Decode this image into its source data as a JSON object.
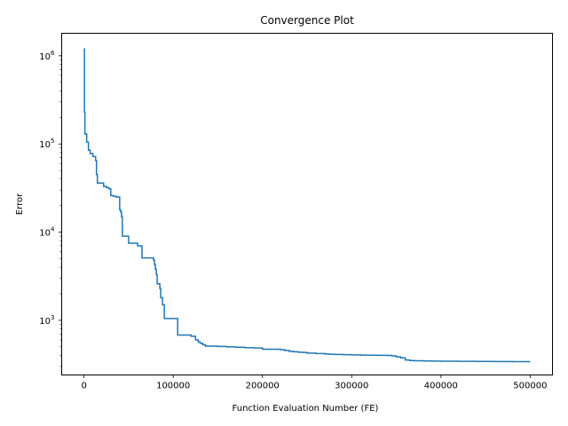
{
  "chart_data": {
    "type": "line",
    "title": "Convergence Plot",
    "xlabel": "Function Evaluation Number (FE)",
    "ylabel": "Error",
    "xlim": [
      -25000,
      525000
    ],
    "ylim": [
      240,
      1800000
    ],
    "yscale": "log",
    "grid": false,
    "x_ticks": [
      0,
      100000,
      200000,
      300000,
      400000,
      500000
    ],
    "x_tick_labels": [
      "0",
      "100000",
      "200000",
      "300000",
      "400000",
      "500000"
    ],
    "y_ticks": [
      1000,
      10000,
      100000,
      1000000
    ],
    "y_tick_labels": [
      {
        "base": "10",
        "exp": "3"
      },
      {
        "base": "10",
        "exp": "4"
      },
      {
        "base": "10",
        "exp": "5"
      },
      {
        "base": "10",
        "exp": "6"
      }
    ],
    "series": [
      {
        "color": "#1f77b4",
        "step": true,
        "x": [
          0,
          500,
          1000,
          3000,
          5000,
          7000,
          10000,
          13000,
          14000,
          15000,
          20000,
          22000,
          25000,
          28000,
          30000,
          33000,
          36000,
          40000,
          41000,
          42000,
          43000,
          45000,
          50000,
          55000,
          60000,
          65000,
          70000,
          75000,
          78000,
          79000,
          80000,
          81000,
          82000,
          83000,
          84000,
          85000,
          86000,
          87000,
          88000,
          89000,
          90000,
          95000,
          100000,
          105000,
          110000,
          115000,
          120000,
          125000,
          128000,
          130000,
          133000,
          136000,
          140000,
          150000,
          160000,
          170000,
          180000,
          190000,
          200000,
          210000,
          220000,
          225000,
          230000,
          235000,
          240000,
          245000,
          250000,
          260000,
          270000,
          275000,
          280000,
          290000,
          300000,
          310000,
          320000,
          330000,
          340000,
          345000,
          350000,
          355000,
          360000,
          365000,
          370000,
          380000,
          390000,
          400000,
          420000,
          440000,
          460000,
          480000,
          500000
        ],
        "y": [
          1200000,
          230000,
          130000,
          105000,
          85000,
          78000,
          72000,
          65000,
          45000,
          36000,
          36000,
          33000,
          32000,
          31000,
          26000,
          25500,
          25000,
          18000,
          17000,
          15000,
          9000,
          9000,
          7500,
          7500,
          7000,
          5100,
          5100,
          5100,
          4800,
          4300,
          3800,
          3300,
          2600,
          2600,
          2600,
          2300,
          1800,
          1800,
          1500,
          1500,
          1050,
          1050,
          1050,
          680,
          680,
          680,
          660,
          600,
          570,
          550,
          530,
          510,
          510,
          505,
          500,
          495,
          490,
          485,
          470,
          470,
          465,
          455,
          445,
          440,
          435,
          432,
          425,
          420,
          415,
          412,
          410,
          408,
          405,
          403,
          402,
          401,
          400,
          395,
          385,
          375,
          355,
          350,
          348,
          346,
          345,
          344,
          343,
          342,
          341,
          340,
          340
        ]
      }
    ]
  }
}
